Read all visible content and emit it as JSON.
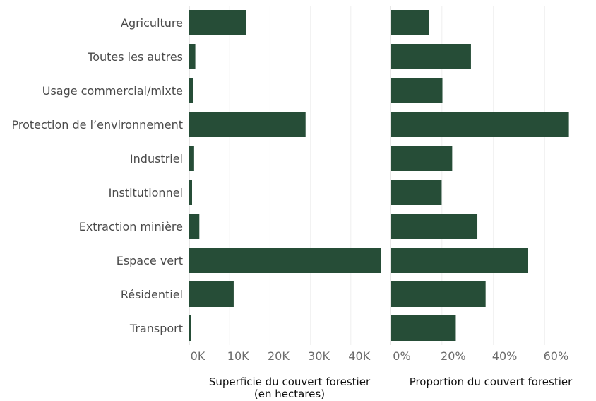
{
  "chart_data": [
    {
      "type": "bar",
      "orientation": "horizontal",
      "categories": [
        "Agriculture",
        "Toutes les autres",
        "Usage commercial/mixte",
        "Protection de l’environnement",
        "Industriel",
        "Institutionnel",
        "Extraction minière",
        "Espace vert",
        "Résidentiel",
        "Transport"
      ],
      "values": [
        14000,
        1500,
        1000,
        28800,
        1200,
        700,
        2500,
        47500,
        11000,
        300
      ],
      "xlabel": [
        "Superficie du couvert forestier",
        "(en hectares)"
      ],
      "xticks": [
        "0K",
        "10K",
        "20K",
        "30K",
        "40K"
      ],
      "xlim": [
        0,
        50000
      ],
      "color": "#264d37",
      "grid": true
    },
    {
      "type": "bar",
      "orientation": "horizontal",
      "categories": [
        "Agriculture",
        "Toutes les autres",
        "Usage commercial/mixte",
        "Protection de l’environnement",
        "Industriel",
        "Institutionnel",
        "Extraction minière",
        "Espace vert",
        "Résidentiel",
        "Transport"
      ],
      "values": [
        15.1,
        31.3,
        20.2,
        69.4,
        24.0,
        19.9,
        33.8,
        53.4,
        37.0,
        25.4
      ],
      "xlabel": [
        "Proportion du couvert forestier"
      ],
      "xticks": [
        "0%",
        "20%",
        "40%",
        "60%"
      ],
      "xlim": [
        0,
        72
      ],
      "color": "#264d37",
      "grid": true
    }
  ]
}
